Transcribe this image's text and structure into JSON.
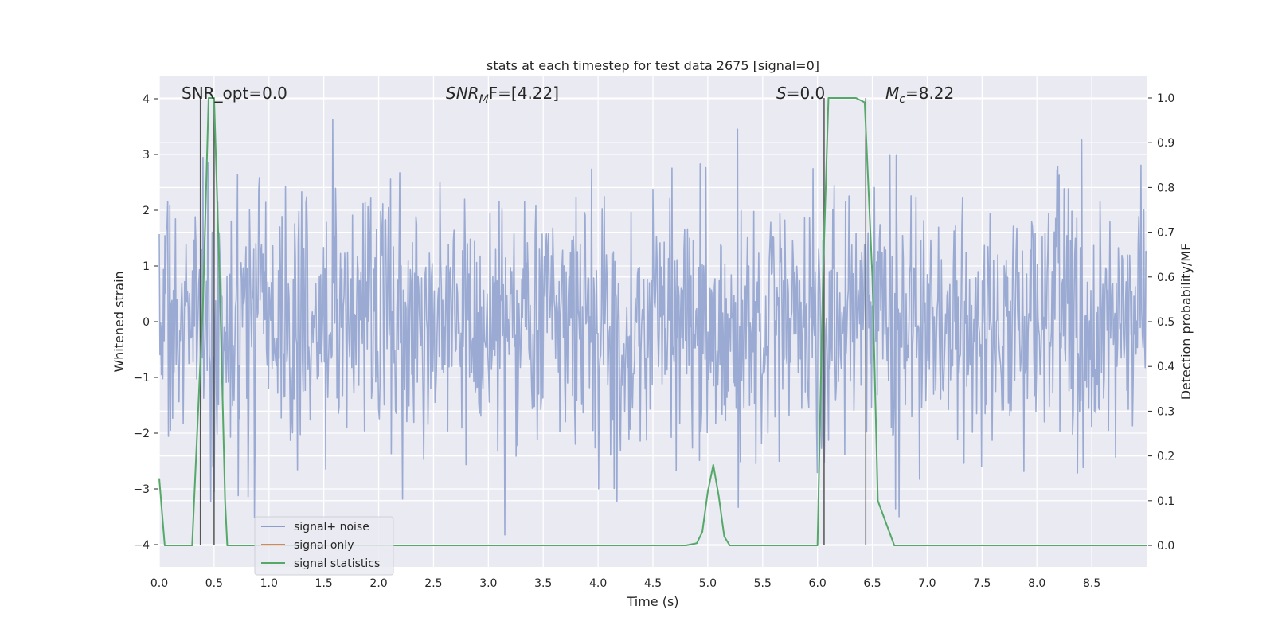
{
  "chart_data": {
    "type": "line",
    "title": "stats at each timestep for test data 2675 [signal=0]",
    "xlabel": "Time (s)",
    "ylabel": "Whitened strain",
    "ylabel_right": "Detection probability/MF",
    "xlim": [
      0.0,
      9.0
    ],
    "ylim": [
      -4.4,
      4.4
    ],
    "ylim_right": [
      -0.048,
      1.048
    ],
    "x_ticks": [
      "0.0",
      "0.5",
      "1.0",
      "1.5",
      "2.0",
      "2.5",
      "3.0",
      "3.5",
      "4.0",
      "4.5",
      "5.0",
      "5.5",
      "6.0",
      "6.5",
      "7.0",
      "7.5",
      "8.0",
      "8.5"
    ],
    "y_ticks": [
      "4",
      "3",
      "2",
      "1",
      "0",
      "−1",
      "−2",
      "−3",
      "−4"
    ],
    "y_ticks_right": [
      "1.0",
      "0.9",
      "0.8",
      "0.7",
      "0.6",
      "0.5",
      "0.4",
      "0.3",
      "0.2",
      "0.1",
      "0.0"
    ],
    "grid": true,
    "legend_placement": "lower-left",
    "annotations": {
      "snr_opt": "SNR_opt=0.0",
      "snr_mf_pre": "SNR",
      "snr_mf_sub": "M",
      "snr_mf_post": "F=[4.22]",
      "s_pre": "S",
      "s_post": "=0.0",
      "mc_pre": "M",
      "mc_sub": "c",
      "mc_post": "=8.22"
    },
    "vertical_lines_x": [
      0.375,
      0.5,
      6.06,
      6.44
    ],
    "series": [
      {
        "name": "signal+ noise",
        "color": "#8c9fcc",
        "axis": "left",
        "description": "whitened noisy strain sampled densely over 0-9 s, roughly Gaussian with std ~1.1, extremes about -4 to 4",
        "approx_range": [
          -4.0,
          4.0
        ]
      },
      {
        "name": "signal only",
        "color": "#dd8452",
        "axis": "left",
        "values": []
      },
      {
        "name": "signal statistics",
        "color": "#55a868",
        "axis": "right",
        "x": [
          0.0,
          0.05,
          0.1,
          0.2,
          0.3,
          0.4,
          0.45,
          0.5,
          0.55,
          0.6,
          0.62,
          0.7,
          1.0,
          2.0,
          3.0,
          3.7,
          3.8,
          4.0,
          4.5,
          4.8,
          4.9,
          4.95,
          5.0,
          5.05,
          5.1,
          5.15,
          5.2,
          5.3,
          5.5,
          6.0,
          6.05,
          6.1,
          6.2,
          6.35,
          6.43,
          6.5,
          6.55,
          6.7,
          7.0,
          8.0,
          9.0
        ],
        "y": [
          0.15,
          0.0,
          0.0,
          0.0,
          0.0,
          0.55,
          1.0,
          1.0,
          0.6,
          0.1,
          0.0,
          0.0,
          0.0,
          0.0,
          0.0,
          0.0,
          0.0,
          0.0,
          0.0,
          0.0,
          0.005,
          0.03,
          0.12,
          0.18,
          0.11,
          0.02,
          0.0,
          0.0,
          0.0,
          0.0,
          0.6,
          1.0,
          1.0,
          1.0,
          0.99,
          0.6,
          0.1,
          0.0,
          0.0,
          0.0,
          0.0
        ]
      }
    ]
  }
}
